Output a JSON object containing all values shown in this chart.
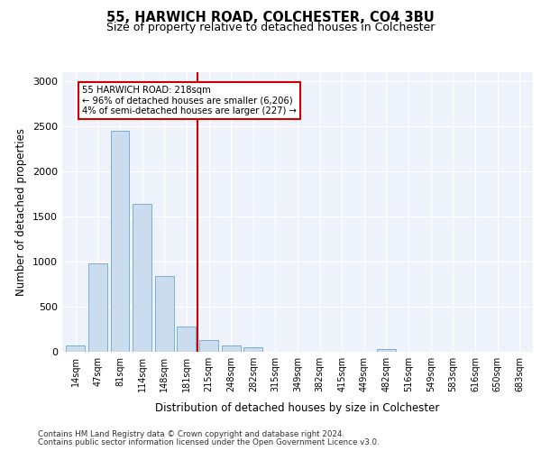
{
  "title": "55, HARWICH ROAD, COLCHESTER, CO4 3BU",
  "subtitle": "Size of property relative to detached houses in Colchester",
  "xlabel": "Distribution of detached houses by size in Colchester",
  "ylabel": "Number of detached properties",
  "bar_color": "#ccdcef",
  "bar_edge_color": "#7aafd4",
  "categories": [
    "14sqm",
    "47sqm",
    "81sqm",
    "114sqm",
    "148sqm",
    "181sqm",
    "215sqm",
    "248sqm",
    "282sqm",
    "315sqm",
    "349sqm",
    "382sqm",
    "415sqm",
    "449sqm",
    "482sqm",
    "516sqm",
    "549sqm",
    "583sqm",
    "616sqm",
    "650sqm",
    "683sqm"
  ],
  "values": [
    70,
    980,
    2450,
    1640,
    840,
    285,
    130,
    68,
    52,
    0,
    0,
    0,
    0,
    0,
    28,
    0,
    0,
    0,
    0,
    0,
    0
  ],
  "vline_x": 6,
  "vline_color": "#cc0000",
  "annotation_line1": "55 HARWICH ROAD: 218sqm",
  "annotation_line2": "← 96% of detached houses are smaller (6,206)",
  "annotation_line3": "4% of semi-detached houses are larger (227) →",
  "annotation_box_color": "#cc0000",
  "ylim": [
    0,
    3100
  ],
  "yticks": [
    0,
    500,
    1000,
    1500,
    2000,
    2500,
    3000
  ],
  "footnote1": "Contains HM Land Registry data © Crown copyright and database right 2024.",
  "footnote2": "Contains public sector information licensed under the Open Government Licence v3.0.",
  "bg_color": "#eef2fa"
}
